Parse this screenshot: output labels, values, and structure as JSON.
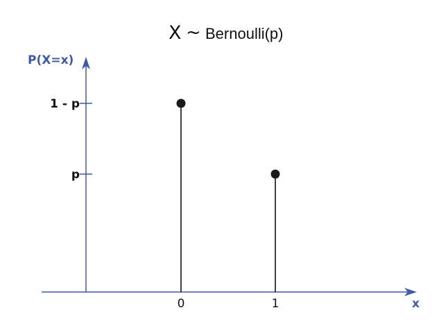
{
  "chart_data": {
    "type": "stem",
    "title_symbol": "X",
    "title_tilde": "~",
    "title_distribution": "Bernoulli(p)",
    "xlabel": "x",
    "ylabel": "P(X=x)",
    "y_ticks": [
      {
        "label": "1 - p",
        "value": 2
      },
      {
        "label": "p",
        "value": 1.25
      }
    ],
    "x_ticks": [
      "0",
      "1"
    ],
    "points": [
      {
        "x": 0,
        "y": 2
      },
      {
        "x": 1,
        "y": 1.25
      }
    ],
    "colors": {
      "axis": "#3f5aa8",
      "stem": "#111111",
      "marker": "#1a1a1a"
    }
  }
}
